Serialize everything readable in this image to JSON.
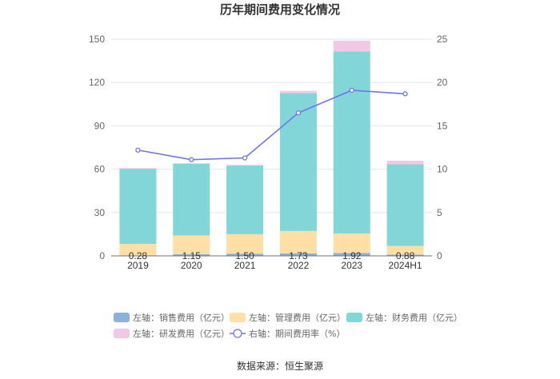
{
  "chart_data": {
    "type": "bar",
    "title": "历年期间费用变化情况",
    "categories": [
      "2019",
      "2020",
      "2021",
      "2022",
      "2023",
      "2024H1"
    ],
    "left_axis": {
      "ylim": [
        0,
        150
      ],
      "ticks": [
        "0",
        "30",
        "60",
        "90",
        "120",
        "150"
      ]
    },
    "right_axis": {
      "ylim": [
        0,
        25
      ],
      "ticks": [
        "0",
        "5",
        "10",
        "15",
        "20",
        "25"
      ]
    },
    "series": [
      {
        "name": "左轴：销售费用（亿元）",
        "axis": "left",
        "color": "#8eb0dd",
        "values": [
          0.28,
          1.15,
          1.5,
          1.73,
          1.92,
          0.88
        ]
      },
      {
        "name": "左轴：管理费用（亿元）",
        "axis": "left",
        "color": "#ffdfa6",
        "values": [
          8.0,
          13.0,
          13.5,
          15.5,
          13.5,
          6.0
        ]
      },
      {
        "name": "左轴：财务费用（亿元）",
        "axis": "left",
        "color": "#83d6d8",
        "values": [
          52.0,
          49.5,
          47.5,
          95.5,
          126.0,
          56.5
        ]
      },
      {
        "name": "左轴：研发费用（亿元）",
        "axis": "left",
        "color": "#f1c9e6",
        "values": [
          0.5,
          0.5,
          0.5,
          1.5,
          7.5,
          2.5
        ]
      },
      {
        "name": "右轴：期间费用率（%）",
        "axis": "right",
        "type": "line",
        "color": "#6f74f0",
        "values": [
          12.2,
          11.1,
          11.3,
          16.5,
          19.1,
          18.7
        ]
      }
    ],
    "data_labels": [
      "0.28",
      "1.15",
      "1.50",
      "1.73",
      "1.92",
      "0.88"
    ]
  },
  "source": "数据来源：恒生聚源"
}
